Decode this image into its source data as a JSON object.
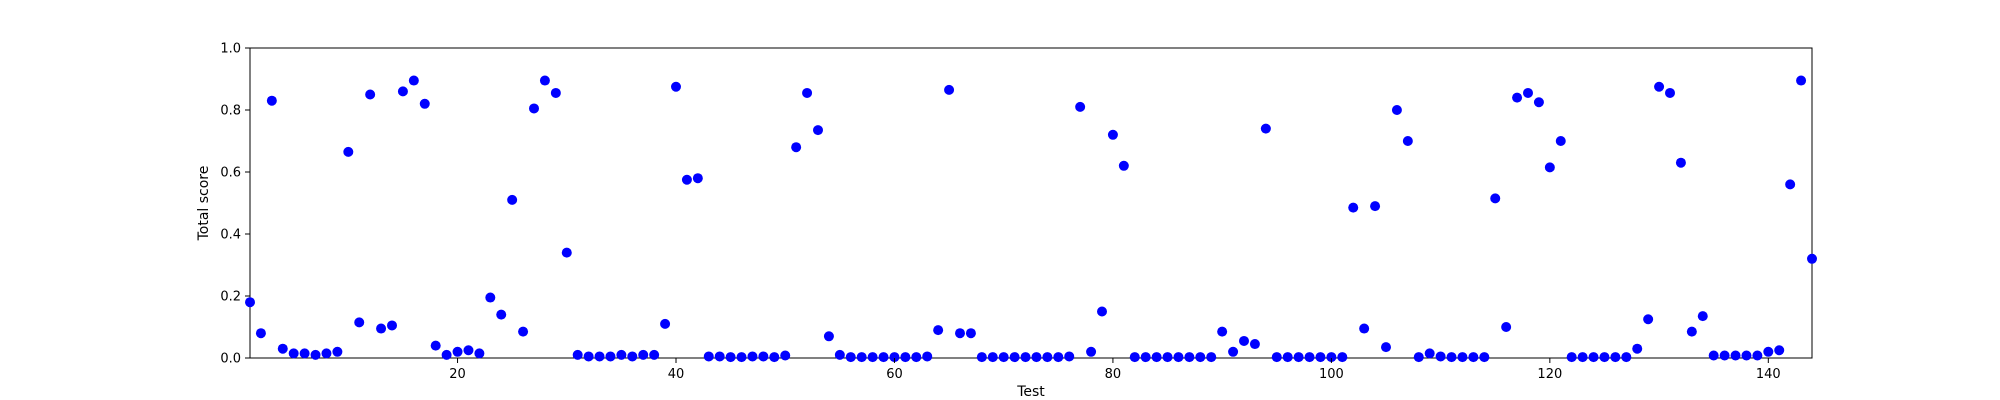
{
  "chart_data": {
    "type": "scatter",
    "xlabel": "Test",
    "ylabel": "Total score",
    "xlim": [
      1,
      144
    ],
    "ylim": [
      0,
      1.0
    ],
    "xticks": [
      20,
      40,
      60,
      80,
      100,
      120,
      140
    ],
    "yticks": [
      0.0,
      0.2,
      0.4,
      0.6,
      0.8,
      1.0
    ],
    "xtick_labels": [
      "20",
      "40",
      "60",
      "80",
      "100",
      "120",
      "140"
    ],
    "ytick_labels": [
      "0.0",
      "0.2",
      "0.4",
      "0.6",
      "0.8",
      "1.0"
    ],
    "grid": false,
    "marker_color": "#0000ff",
    "x": [
      1,
      2,
      3,
      4,
      5,
      6,
      7,
      8,
      9,
      10,
      11,
      12,
      13,
      14,
      15,
      16,
      17,
      18,
      19,
      20,
      21,
      22,
      23,
      24,
      25,
      26,
      27,
      28,
      29,
      30,
      31,
      32,
      33,
      34,
      35,
      36,
      37,
      38,
      39,
      40,
      41,
      42,
      43,
      44,
      45,
      46,
      47,
      48,
      49,
      50,
      51,
      52,
      53,
      54,
      55,
      56,
      57,
      58,
      59,
      60,
      61,
      62,
      63,
      64,
      65,
      66,
      67,
      68,
      69,
      70,
      71,
      72,
      73,
      74,
      75,
      76,
      77,
      78,
      79,
      80,
      81,
      82,
      83,
      84,
      85,
      86,
      87,
      88,
      89,
      90,
      91,
      92,
      93,
      94,
      95,
      96,
      97,
      98,
      99,
      100,
      101,
      102,
      103,
      104,
      105,
      106,
      107,
      108,
      109,
      110,
      111,
      112,
      113,
      114,
      115,
      116,
      117,
      118,
      119,
      120,
      121,
      122,
      123,
      124,
      125,
      126,
      127,
      128,
      129,
      130,
      131,
      132,
      133,
      134,
      135,
      136,
      137,
      138,
      139,
      140,
      141,
      142,
      143,
      144
    ],
    "y": [
      0.18,
      0.08,
      0.83,
      0.03,
      0.015,
      0.015,
      0.01,
      0.015,
      0.02,
      0.665,
      0.115,
      0.85,
      0.095,
      0.105,
      0.86,
      0.895,
      0.82,
      0.04,
      0.01,
      0.02,
      0.025,
      0.015,
      0.195,
      0.14,
      0.51,
      0.085,
      0.805,
      0.895,
      0.855,
      0.34,
      0.01,
      0.005,
      0.005,
      0.005,
      0.01,
      0.005,
      0.01,
      0.01,
      0.11,
      0.875,
      0.575,
      0.58,
      0.005,
      0.005,
      0.003,
      0.003,
      0.005,
      0.005,
      0.003,
      0.008,
      0.68,
      0.855,
      0.735,
      0.07,
      0.01,
      0.003,
      0.003,
      0.003,
      0.003,
      0.003,
      0.003,
      0.003,
      0.005,
      0.09,
      0.865,
      0.08,
      0.08,
      0.003,
      0.003,
      0.003,
      0.003,
      0.003,
      0.003,
      0.003,
      0.003,
      0.005,
      0.81,
      0.02,
      0.15,
      0.72,
      0.62,
      0.003,
      0.003,
      0.003,
      0.003,
      0.003,
      0.003,
      0.003,
      0.003,
      0.085,
      0.02,
      0.055,
      0.045,
      0.74,
      0.003,
      0.003,
      0.003,
      0.003,
      0.003,
      0.003,
      0.003,
      0.485,
      0.095,
      0.49,
      0.035,
      0.8,
      0.7,
      0.003,
      0.015,
      0.005,
      0.003,
      0.003,
      0.003,
      0.003,
      0.515,
      0.1,
      0.84,
      0.855,
      0.825,
      0.615,
      0.7,
      0.003,
      0.003,
      0.003,
      0.003,
      0.003,
      0.003,
      0.03,
      0.125,
      0.875,
      0.855,
      0.63,
      0.085,
      0.135,
      0.008,
      0.008,
      0.008,
      0.008,
      0.008,
      0.02,
      0.025,
      0.56,
      0.895,
      0.32
    ]
  }
}
